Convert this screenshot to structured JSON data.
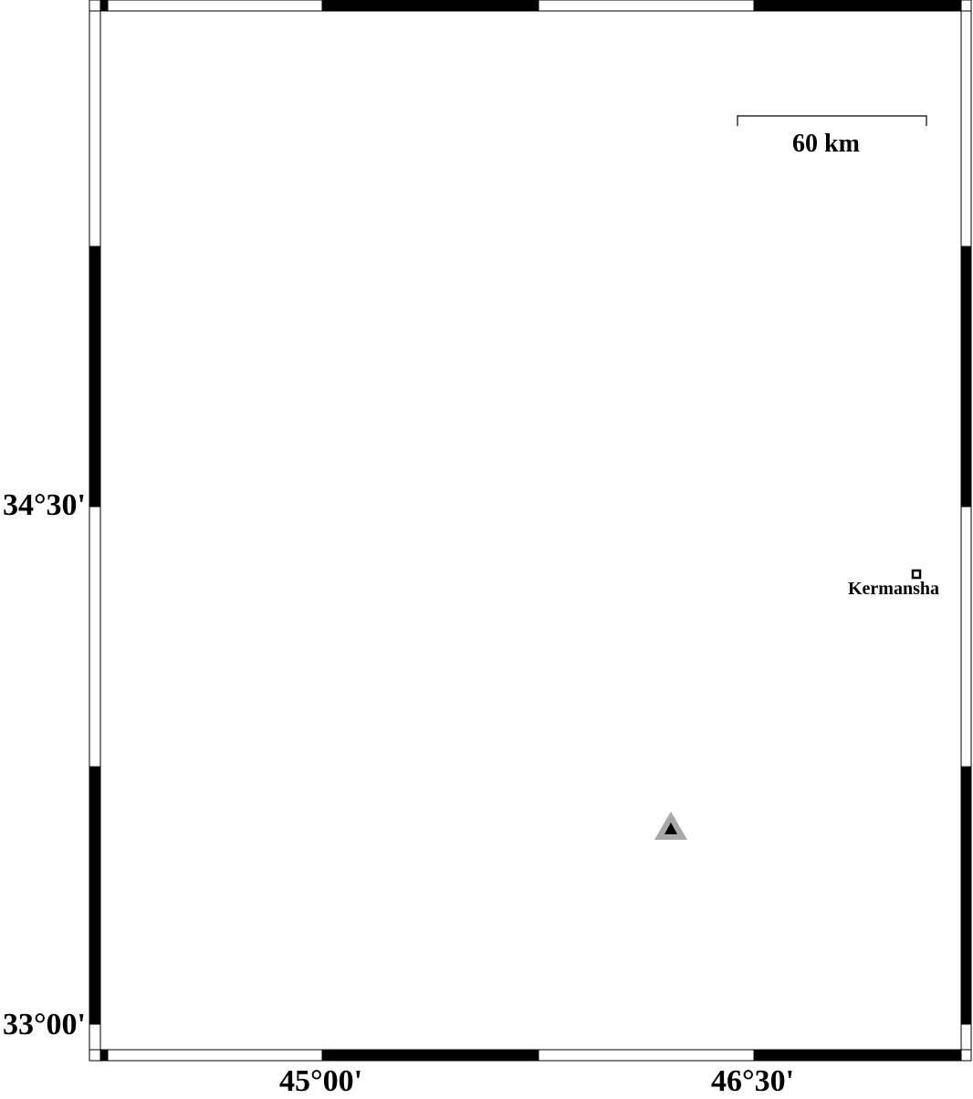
{
  "map": {
    "frame_style": "checkered-gmt",
    "colors": {
      "water": "#4da6e0",
      "water_outline": "#1a3f8f",
      "border": "#000000",
      "station": "#000000",
      "station_halo": "#a8a8a8"
    },
    "lat_labels": [
      "34°30'",
      "33°00'"
    ],
    "lon_labels": [
      "45°00'",
      "46°30'"
    ],
    "scale_bar": {
      "label": "60 km"
    },
    "cities": [
      {
        "name": "Kermansha",
        "icon": "square-marker-icon"
      }
    ],
    "markers": [
      {
        "icon": "triangle-station-icon"
      }
    ]
  }
}
